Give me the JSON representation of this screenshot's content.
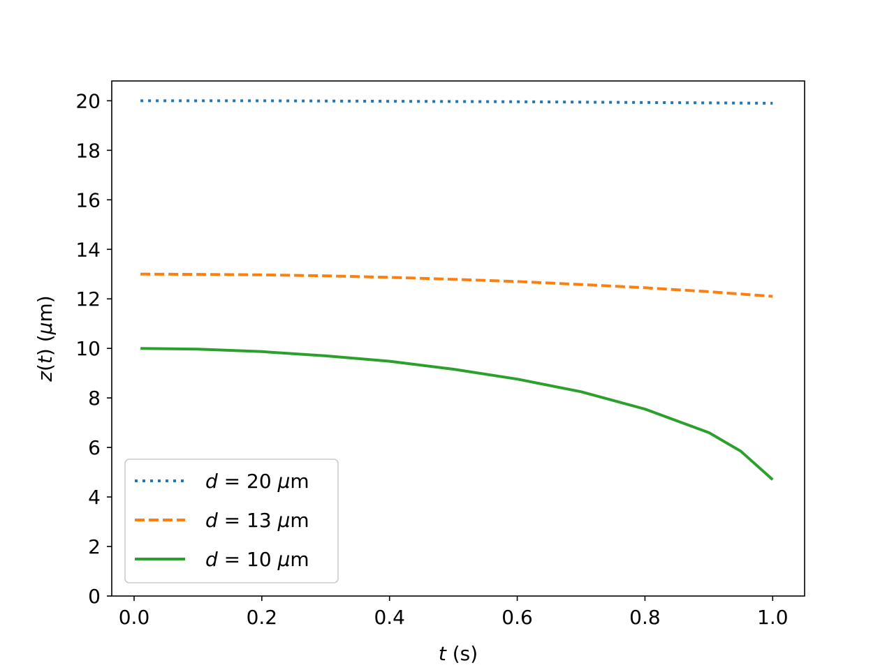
{
  "chart_data": {
    "type": "line",
    "xlabel_var": "t",
    "xlabel_unit": " (s)",
    "ylabel_func": "z",
    "ylabel_arg": "t",
    "ylabel_unit_prefix": "μ",
    "ylabel_unit_suffix": "m",
    "xlim": [
      -0.035,
      1.05
    ],
    "ylim": [
      0,
      20.8
    ],
    "xticks": [
      0.0,
      0.2,
      0.4,
      0.6,
      0.8,
      1.0
    ],
    "xtick_labels": [
      "0.0",
      "0.2",
      "0.4",
      "0.6",
      "0.8",
      "1.0"
    ],
    "yticks": [
      0,
      2,
      4,
      6,
      8,
      10,
      12,
      14,
      16,
      18,
      20
    ],
    "ytick_labels": [
      "0",
      "2",
      "4",
      "6",
      "8",
      "10",
      "12",
      "14",
      "16",
      "18",
      "20"
    ],
    "grid": false,
    "legend_position": "lower-left",
    "series": [
      {
        "legend_var": "d",
        "legend_value": " = 20 ",
        "legend_unit_prefix": "μ",
        "legend_unit_suffix": "m",
        "color": "#1f77b4",
        "style": "dotted",
        "x": [
          0.01,
          0.2,
          0.4,
          0.6,
          0.8,
          1.0
        ],
        "y": [
          20.0,
          20.0,
          19.98,
          19.96,
          19.93,
          19.9
        ]
      },
      {
        "legend_var": "d",
        "legend_value": " = 13 ",
        "legend_unit_prefix": "μ",
        "legend_unit_suffix": "m",
        "color": "#ff7f0e",
        "style": "dashed",
        "x": [
          0.01,
          0.1,
          0.2,
          0.3,
          0.4,
          0.5,
          0.6,
          0.7,
          0.8,
          0.9,
          1.0
        ],
        "y": [
          13.0,
          12.99,
          12.97,
          12.93,
          12.87,
          12.79,
          12.7,
          12.58,
          12.45,
          12.29,
          12.1
        ]
      },
      {
        "legend_var": "d",
        "legend_value": " = 10 ",
        "legend_unit_prefix": "μ",
        "legend_unit_suffix": "m",
        "color": "#2ca02c",
        "style": "solid",
        "x": [
          0.01,
          0.1,
          0.2,
          0.3,
          0.4,
          0.5,
          0.6,
          0.7,
          0.8,
          0.9,
          0.95,
          1.0
        ],
        "y": [
          10.0,
          9.97,
          9.87,
          9.7,
          9.48,
          9.16,
          8.76,
          8.25,
          7.55,
          6.6,
          5.85,
          4.7
        ]
      }
    ]
  }
}
